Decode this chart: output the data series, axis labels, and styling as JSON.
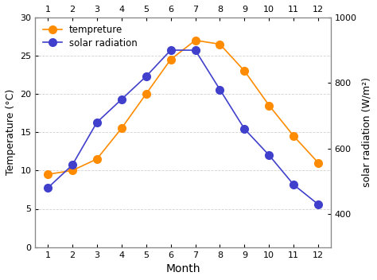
{
  "months": [
    1,
    2,
    3,
    4,
    5,
    6,
    7,
    8,
    9,
    10,
    11,
    12
  ],
  "temperature": [
    9.5,
    10.0,
    11.5,
    15.5,
    20.0,
    24.5,
    27.0,
    26.5,
    23.0,
    18.5,
    14.5,
    11.0
  ],
  "solar_radiation": [
    480,
    550,
    680,
    750,
    820,
    900,
    900,
    780,
    660,
    580,
    490,
    430
  ],
  "temp_color": "#FF8C00",
  "solar_color": "#4040CC",
  "temp_label": "tempreture",
  "solar_label": "solar radiation",
  "xlabel": "Month",
  "ylabel_left": "Temperature (°C)",
  "ylabel_right": "solar radiation (W/m²)",
  "xlim_min": 0.5,
  "xlim_max": 12.5,
  "ylim_left": [
    0,
    30
  ],
  "ylim_right": [
    300,
    1000
  ],
  "yticks_left": [
    0,
    5,
    10,
    15,
    20,
    25,
    30
  ],
  "ytick_labels_left": [
    "0",
    "5",
    "10",
    "15",
    "20",
    "25",
    "30"
  ],
  "yticks_right": [
    400,
    600,
    800,
    1000
  ],
  "ytick_labels_right": [
    "400",
    "600",
    "800",
    "1000"
  ],
  "bg_color": "#ffffff",
  "grid_color": "#d0d0d0",
  "marker_size": 8,
  "line_width": 1.2
}
